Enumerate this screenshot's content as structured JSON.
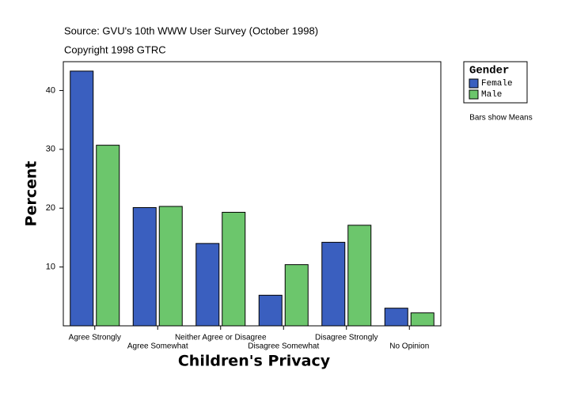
{
  "chart_data": {
    "type": "bar",
    "subtitle": "Source: GVU's 10th WWW User Survey (October 1998)",
    "copyright": "Copyright 1998 GTRC",
    "x_label": "Children's Privacy",
    "y_label": "Percent",
    "legend_title": "Gender",
    "note": "Bars show Means",
    "categories": [
      "Agree Strongly",
      "Agree Somewhat",
      "Neither Agree or Disagree",
      "Disagree Somewhat",
      "Disagree Strongly",
      "No Opinion"
    ],
    "series": [
      {
        "name": "Female",
        "color": "#3a5fbf",
        "values": [
          43.3,
          20.1,
          14.0,
          5.2,
          14.2,
          3.0
        ]
      },
      {
        "name": "Male",
        "color": "#6cc66c",
        "values": [
          30.7,
          20.3,
          19.3,
          10.4,
          17.1,
          2.2
        ]
      }
    ],
    "ylim": [
      0,
      44.9
    ],
    "yticks": [
      10,
      20,
      30,
      40
    ]
  }
}
